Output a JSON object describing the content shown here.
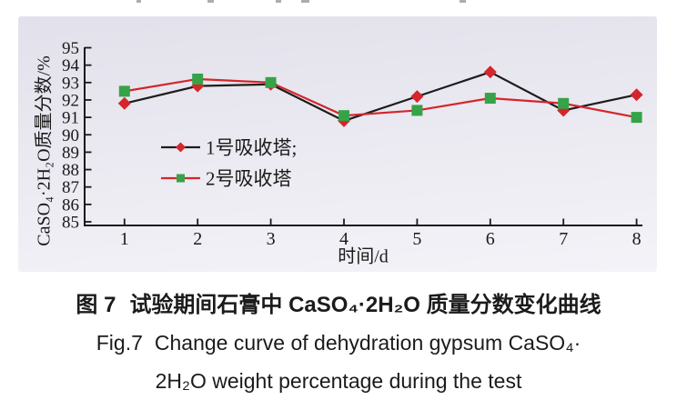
{
  "figure": {
    "caption_zh_label": "图 7",
    "caption_zh_text": "试验期间石膏中 CaSO₄·2H₂O 质量分数变化曲线",
    "caption_en_label": "Fig.7",
    "caption_en_text": "Change curve of dehydration gypsum CaSO₄·",
    "caption_en_line2": "2H₂O weight percentage during the test"
  },
  "chart_data": {
    "type": "line",
    "title": "",
    "x": [
      1,
      2,
      3,
      4,
      5,
      6,
      7,
      8
    ],
    "xlabel": "时间/d",
    "ylabel": "CaSO₄·2H₂O质量分数/%",
    "xlim": [
      1,
      8
    ],
    "ylim": [
      85,
      95
    ],
    "ytick_interval": 1,
    "xticks": [
      1,
      2,
      3,
      4,
      5,
      6,
      7,
      8
    ],
    "yticks": [
      85,
      86,
      87,
      88,
      89,
      90,
      91,
      92,
      93,
      94,
      95
    ],
    "grid": false,
    "legend_position": "inside lower-left",
    "axis_color": "#1a1a1a",
    "panel_bg_top": "#e2e1eb",
    "panel_bg_bottom": "#f4f3f8",
    "series": [
      {
        "name": "1号吸收塔;",
        "line_color": "#1c1c1c",
        "marker": "diamond",
        "marker_color": "#d4262b",
        "values": [
          91.8,
          92.8,
          92.9,
          90.8,
          92.2,
          93.6,
          91.4,
          92.3
        ]
      },
      {
        "name": "2号吸收塔",
        "line_color": "#d4262b",
        "marker": "square",
        "marker_color": "#35a348",
        "values": [
          92.5,
          93.2,
          93.0,
          91.1,
          91.4,
          92.1,
          91.8,
          91.0
        ]
      }
    ]
  }
}
